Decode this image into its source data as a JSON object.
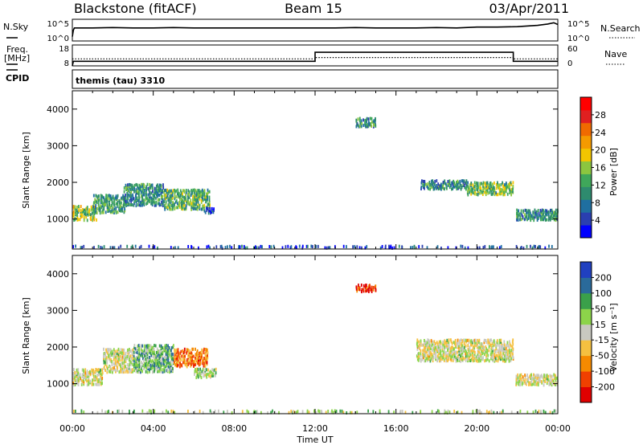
{
  "header": {
    "station": "Blackstone (fitACF)",
    "beam": "Beam 15",
    "date": "03/Apr/2011",
    "cpid_label": "CPID",
    "cpid_value": "themis (tau) 3310"
  },
  "chart_data": [
    {
      "type": "line",
      "id": "noise",
      "left_label": "N.Sky",
      "right_label": "N.Search",
      "left_ticks": [
        "10^5",
        "10^0"
      ],
      "right_ticks": [
        "10^5",
        "10^0"
      ],
      "x": [
        0,
        0.05,
        0.1,
        1,
        2,
        3,
        4,
        5,
        6,
        7,
        8,
        9,
        10,
        11,
        12,
        13,
        14,
        15,
        16,
        17,
        18,
        19,
        20,
        21,
        22,
        23,
        23.5,
        23.8,
        24
      ],
      "y": [
        1,
        2.5,
        3,
        3,
        3.1,
        3,
        3,
        3.1,
        3,
        3,
        3,
        3,
        3,
        3,
        3,
        3,
        3.1,
        3,
        3,
        3,
        3.1,
        3,
        3.2,
        3.2,
        3.3,
        3.6,
        3.9,
        4.2,
        3.8
      ],
      "y_range": [
        0,
        5
      ]
    },
    {
      "type": "line",
      "id": "frequency",
      "left_label": "Freq.",
      "left_unit": "[MHz]",
      "right_label": "Nave",
      "left_ticks": [
        "18",
        "8"
      ],
      "right_ticks": [
        "60",
        "0"
      ],
      "freq": {
        "x": [
          0,
          0.05,
          12,
          12,
          21.8,
          21.8,
          24
        ],
        "y": [
          8,
          10.2,
          10.2,
          14.5,
          14.5,
          10.2,
          10.2
        ]
      },
      "nave": {
        "x": [
          0,
          12,
          12,
          21.8,
          21.8,
          24
        ],
        "y": [
          20,
          20,
          24,
          24,
          20,
          20
        ]
      },
      "y_range": [
        8,
        18
      ]
    },
    {
      "type": "heatmap",
      "id": "power",
      "ylabel": "Slant Range [km]",
      "xlabel": "Time UT",
      "x_ticks": [
        "00:00",
        "04:00",
        "08:00",
        "12:00",
        "16:00",
        "20:00",
        "00:00"
      ],
      "x_range": [
        0,
        24
      ],
      "y_ticks": [
        1000,
        2000,
        3000,
        4000
      ],
      "y_range": [
        180,
        4500
      ],
      "colorbar": {
        "label": "Power [dB]",
        "ticks": [
          "28",
          "24",
          "20",
          "16",
          "12",
          "8",
          "4"
        ],
        "range": [
          0,
          32
        ],
        "colors": [
          "#0000ff",
          "#2a3fb0",
          "#1f6fa0",
          "#2e8b6e",
          "#3fa75a",
          "#8cc63f",
          "#f2c500",
          "#f59a00",
          "#f06a00",
          "#e02020",
          "#ff0000"
        ]
      },
      "clusters": [
        {
          "t0": 0.0,
          "t1": 1.2,
          "r0": 950,
          "r1": 1350,
          "v": 16
        },
        {
          "t0": 1.0,
          "t1": 2.6,
          "r0": 1150,
          "r1": 1650,
          "v": 12
        },
        {
          "t0": 2.5,
          "t1": 4.5,
          "r0": 1350,
          "r1": 1950,
          "v": 10
        },
        {
          "t0": 4.5,
          "t1": 6.8,
          "r0": 1250,
          "r1": 1800,
          "v": 13
        },
        {
          "t0": 6.5,
          "t1": 7.0,
          "r0": 1150,
          "r1": 1300,
          "v": 6
        },
        {
          "t0": 17.2,
          "t1": 19.5,
          "r0": 1800,
          "r1": 2050,
          "v": 10
        },
        {
          "t0": 19.5,
          "t1": 21.8,
          "r0": 1650,
          "r1": 2000,
          "v": 14
        },
        {
          "t0": 21.9,
          "t1": 24.0,
          "r0": 950,
          "r1": 1250,
          "v": 10
        },
        {
          "t0": 14.0,
          "t1": 15.0,
          "r0": 3500,
          "r1": 3750,
          "v": 10
        },
        {
          "t0": 0.0,
          "t1": 24.0,
          "r0": 190,
          "r1": 260,
          "v": 5
        }
      ]
    },
    {
      "type": "heatmap",
      "id": "velocity",
      "ylabel": "Slant Range [km]",
      "xlabel": "Time UT",
      "x_ticks": [
        "00:00",
        "04:00",
        "08:00",
        "12:00",
        "16:00",
        "20:00",
        "00:00"
      ],
      "x_range": [
        0,
        24
      ],
      "y_ticks": [
        1000,
        2000,
        3000,
        4000
      ],
      "y_range": [
        180,
        4500
      ],
      "colorbar": {
        "label": "Velocity [m s⁻¹]",
        "ticks": [
          "200",
          "100",
          "50",
          "15",
          "-15",
          "-50",
          "-100",
          "-200"
        ],
        "range": [
          -250,
          250
        ],
        "colors": [
          "#e00000",
          "#f04000",
          "#f58a00",
          "#f5c040",
          "#c8c8c0",
          "#8cd44a",
          "#3aa04a",
          "#2a6a9a",
          "#2040c0"
        ]
      },
      "clusters": [
        {
          "t0": 0.0,
          "t1": 1.5,
          "r0": 950,
          "r1": 1400,
          "v": 0
        },
        {
          "t0": 1.5,
          "t1": 3.0,
          "r0": 1300,
          "r1": 1950,
          "v": 0
        },
        {
          "t0": 3.0,
          "t1": 5.0,
          "r0": 1300,
          "r1": 2050,
          "v": 80
        },
        {
          "t0": 5.0,
          "t1": 6.7,
          "r0": 1450,
          "r1": 1950,
          "v": -120
        },
        {
          "t0": 6.0,
          "t1": 7.1,
          "r0": 1150,
          "r1": 1400,
          "v": 20
        },
        {
          "t0": 17.0,
          "t1": 21.8,
          "r0": 1600,
          "r1": 2200,
          "v": 0
        },
        {
          "t0": 21.9,
          "t1": 24.0,
          "r0": 950,
          "r1": 1250,
          "v": 0
        },
        {
          "t0": 14.0,
          "t1": 15.0,
          "r0": 3500,
          "r1": 3700,
          "v": -200
        },
        {
          "t0": 0.0,
          "t1": 24.0,
          "r0": 190,
          "r1": 260,
          "v": 30
        }
      ]
    }
  ]
}
